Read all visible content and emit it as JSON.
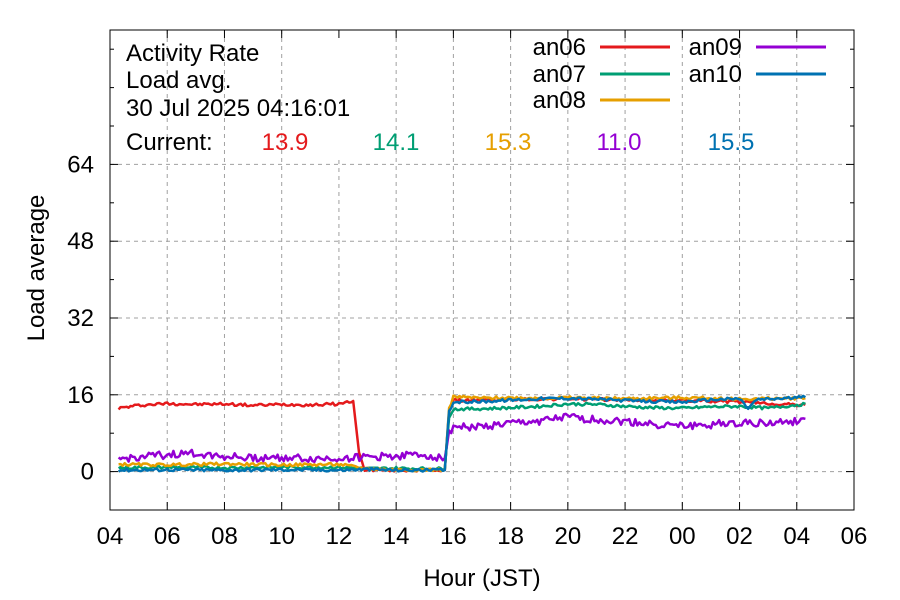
{
  "chart_data": {
    "type": "line",
    "title_lines": [
      "Activity Rate",
      "Load avg.",
      "30 Jul 2025 04:16:01"
    ],
    "current_label": "Current:",
    "xlabel": "Hour (JST)",
    "ylabel": "Load average",
    "x_tick_labels": [
      "04",
      "06",
      "08",
      "10",
      "12",
      "14",
      "16",
      "18",
      "20",
      "22",
      "00",
      "02",
      "04",
      "06"
    ],
    "x_tick_hours": [
      4,
      6,
      8,
      10,
      12,
      14,
      16,
      18,
      20,
      22,
      24,
      26,
      28,
      30
    ],
    "xlim": [
      4,
      30
    ],
    "yticks": [
      0,
      16,
      32,
      48,
      64
    ],
    "ylim": [
      -8,
      92
    ],
    "grid": true,
    "legend_position": "top-right",
    "series": [
      {
        "name": "an06",
        "color": "#e41a1c",
        "current": "13.9",
        "points": [
          [
            4.3,
            13.2
          ],
          [
            5.0,
            13.8
          ],
          [
            6.0,
            14.2
          ],
          [
            7.0,
            14.0
          ],
          [
            8.0,
            14.1
          ],
          [
            9.0,
            13.8
          ],
          [
            10.0,
            14.0
          ],
          [
            11.0,
            13.9
          ],
          [
            12.0,
            14.1
          ],
          [
            12.5,
            14.7
          ],
          [
            12.7,
            4.0
          ],
          [
            12.9,
            0.4
          ],
          [
            14.0,
            0.3
          ],
          [
            15.0,
            0.3
          ],
          [
            15.7,
            0.3
          ],
          [
            15.85,
            12.5
          ],
          [
            16.0,
            14.8
          ],
          [
            17.0,
            14.9
          ],
          [
            18.0,
            15.0
          ],
          [
            19.0,
            15.1
          ],
          [
            20.0,
            15.2
          ],
          [
            21.0,
            15.0
          ],
          [
            22.0,
            15.0
          ],
          [
            23.0,
            14.9
          ],
          [
            24.0,
            14.8
          ],
          [
            25.0,
            14.7
          ],
          [
            26.0,
            14.5
          ],
          [
            27.0,
            14.2
          ],
          [
            28.0,
            13.9
          ],
          [
            28.3,
            13.9
          ]
        ]
      },
      {
        "name": "an07",
        "color": "#009e73",
        "current": "14.1",
        "points": [
          [
            4.3,
            0.8
          ],
          [
            6.0,
            0.9
          ],
          [
            8.0,
            0.8
          ],
          [
            10.0,
            0.9
          ],
          [
            12.0,
            0.9
          ],
          [
            13.0,
            0.6
          ],
          [
            14.0,
            0.7
          ],
          [
            15.0,
            0.6
          ],
          [
            15.7,
            0.6
          ],
          [
            15.85,
            11.5
          ],
          [
            16.0,
            13.0
          ],
          [
            17.0,
            13.1
          ],
          [
            18.0,
            13.3
          ],
          [
            19.0,
            13.6
          ],
          [
            20.0,
            14.1
          ],
          [
            21.0,
            14.0
          ],
          [
            22.0,
            13.6
          ],
          [
            23.0,
            13.3
          ],
          [
            24.0,
            13.2
          ],
          [
            25.0,
            13.5
          ],
          [
            26.0,
            13.6
          ],
          [
            27.0,
            13.2
          ],
          [
            28.0,
            13.9
          ],
          [
            28.3,
            14.1
          ]
        ]
      },
      {
        "name": "an08",
        "color": "#e69f00",
        "current": "15.3",
        "points": [
          [
            4.3,
            1.5
          ],
          [
            6.0,
            1.4
          ],
          [
            8.0,
            1.6
          ],
          [
            10.0,
            1.4
          ],
          [
            12.0,
            1.5
          ],
          [
            13.0,
            0.6
          ],
          [
            14.0,
            0.4
          ],
          [
            15.0,
            0.4
          ],
          [
            15.7,
            0.4
          ],
          [
            15.85,
            13.0
          ],
          [
            16.0,
            15.6
          ],
          [
            17.0,
            15.3
          ],
          [
            18.0,
            15.4
          ],
          [
            19.0,
            15.3
          ],
          [
            20.0,
            15.4
          ],
          [
            21.0,
            15.3
          ],
          [
            22.0,
            15.2
          ],
          [
            23.0,
            15.3
          ],
          [
            24.0,
            15.4
          ],
          [
            25.0,
            15.3
          ],
          [
            26.0,
            15.1
          ],
          [
            27.0,
            15.2
          ],
          [
            28.0,
            15.3
          ],
          [
            28.3,
            15.3
          ]
        ]
      },
      {
        "name": "an09",
        "color": "#9400d3",
        "current": "11.0",
        "points": [
          [
            4.3,
            2.5
          ],
          [
            5.0,
            3.0
          ],
          [
            6.0,
            3.5
          ],
          [
            7.0,
            3.8
          ],
          [
            8.0,
            3.2
          ],
          [
            9.0,
            2.8
          ],
          [
            10.0,
            3.0
          ],
          [
            11.0,
            2.6
          ],
          [
            12.0,
            2.8
          ],
          [
            13.0,
            3.0
          ],
          [
            14.0,
            3.3
          ],
          [
            15.0,
            3.5
          ],
          [
            15.7,
            2.8
          ],
          [
            15.85,
            8.0
          ],
          [
            16.0,
            9.5
          ],
          [
            17.0,
            9.3
          ],
          [
            18.0,
            10.0
          ],
          [
            19.0,
            10.5
          ],
          [
            20.0,
            11.3
          ],
          [
            21.0,
            10.8
          ],
          [
            22.0,
            10.4
          ],
          [
            23.0,
            9.9
          ],
          [
            24.0,
            9.4
          ],
          [
            25.0,
            9.8
          ],
          [
            26.0,
            10.3
          ],
          [
            27.0,
            10.0
          ],
          [
            28.0,
            10.5
          ],
          [
            28.3,
            11.0
          ]
        ]
      },
      {
        "name": "an10",
        "color": "#0072b2",
        "current": "15.5",
        "points": [
          [
            4.3,
            0.3
          ],
          [
            6.0,
            0.4
          ],
          [
            8.0,
            0.3
          ],
          [
            10.0,
            0.4
          ],
          [
            12.0,
            0.3
          ],
          [
            13.0,
            0.5
          ],
          [
            14.0,
            0.3
          ],
          [
            15.0,
            0.3
          ],
          [
            15.7,
            0.3
          ],
          [
            15.85,
            12.5
          ],
          [
            16.0,
            14.5
          ],
          [
            17.0,
            14.6
          ],
          [
            18.0,
            14.9
          ],
          [
            19.0,
            15.2
          ],
          [
            20.0,
            15.3
          ],
          [
            21.0,
            15.1
          ],
          [
            22.0,
            14.8
          ],
          [
            23.0,
            14.6
          ],
          [
            24.0,
            14.5
          ],
          [
            25.0,
            15.0
          ],
          [
            26.0,
            15.2
          ],
          [
            26.3,
            13.2
          ],
          [
            26.6,
            15.0
          ],
          [
            27.0,
            15.1
          ],
          [
            28.0,
            15.4
          ],
          [
            28.3,
            15.5
          ]
        ]
      }
    ]
  }
}
